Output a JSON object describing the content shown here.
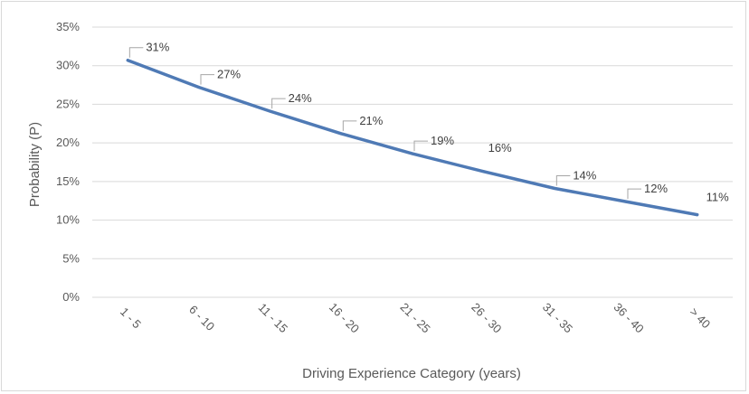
{
  "chart_data": {
    "type": "line",
    "title": "",
    "xlabel": "Driving Experience Category (years)",
    "ylabel": "Probability (P)",
    "categories": [
      "1 - 5",
      "6 - 10",
      "11 - 15",
      "16 - 20",
      "21 - 25",
      "26 - 30",
      "31 - 35",
      "36 - 40",
      "> 40"
    ],
    "series": [
      {
        "values": [
          0.307,
          0.272,
          0.241,
          0.212,
          0.186,
          0.163,
          0.141,
          0.124,
          0.107
        ],
        "data_labels": [
          "31%",
          "27%",
          "24%",
          "21%",
          "19%",
          "16%",
          "14%",
          "12%",
          "11%"
        ],
        "color": "#4f7ab5"
      }
    ],
    "yticks": [
      "0%",
      "5%",
      "10%",
      "15%",
      "20%",
      "25%",
      "30%",
      "35%"
    ],
    "ylim": [
      0,
      0.35
    ],
    "grid": true,
    "legend": "none",
    "gridline_color": "#d9d9d9"
  }
}
